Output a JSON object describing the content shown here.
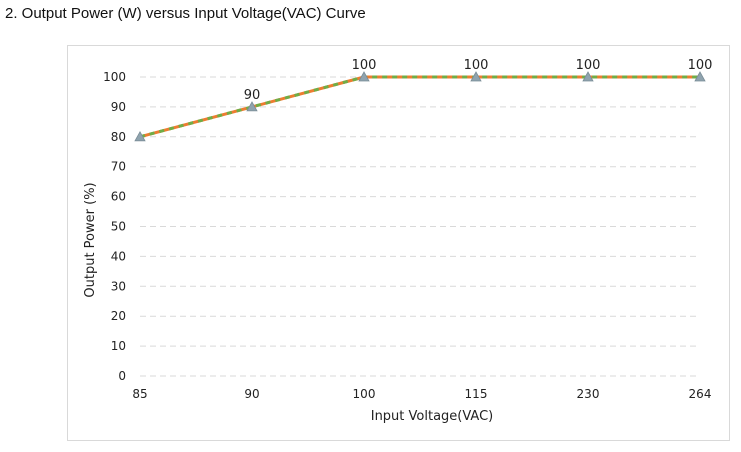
{
  "heading": "2. Output Power (W) versus Input Voltage(VAC) Curve",
  "chart_data": {
    "type": "line",
    "title": "2. Output Power (W) versus Input Voltage(VAC) Curve",
    "xlabel": "Input Voltage(VAC)",
    "ylabel": "Output  Power (%)",
    "categories": [
      "85",
      "90",
      "100",
      "115",
      "230",
      "264"
    ],
    "series": [
      {
        "name": "Output Power",
        "values": [
          80,
          90,
          100,
          100,
          100,
          100
        ]
      }
    ],
    "data_labels": [
      "",
      "90",
      "100",
      "100",
      "100",
      "100"
    ],
    "ylim": [
      0,
      100
    ],
    "yticks": [
      0,
      10,
      20,
      30,
      40,
      50,
      60,
      70,
      80,
      90,
      100
    ],
    "grid": true,
    "legend": "none",
    "colors": {
      "line_primary": "#ED7D31",
      "line_dash": "#70AD47",
      "marker": "#8FA3AE",
      "grid": "#d9d9d9"
    }
  }
}
